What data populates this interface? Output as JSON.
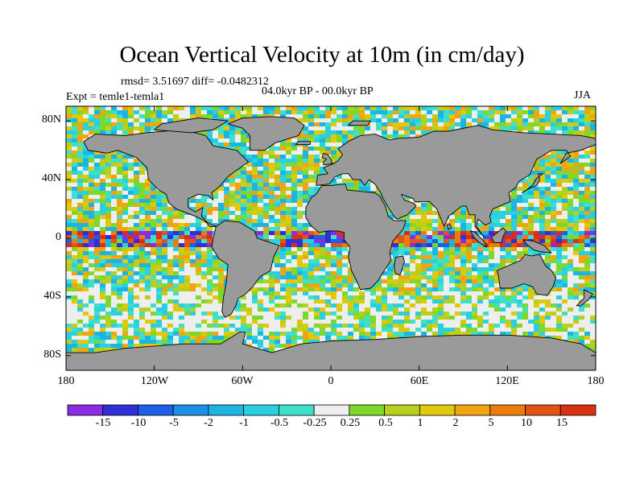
{
  "figure": {
    "title": "Ocean Vertical Velocity at 10m (in cm/day)",
    "stats": "rmsd= 3.51697  diff= -0.0482312",
    "period": "04.0kyr BP - 00.0kyr BP",
    "experiment": "Expt = temle1-temla1",
    "season": "JJA"
  },
  "axes": {
    "lat_ticks": [
      "80N",
      "40N",
      "0",
      "40S",
      "80S"
    ],
    "lon_ticks": [
      "180",
      "120W",
      "60W",
      "0",
      "60E",
      "120E",
      "180"
    ]
  },
  "colorbar": {
    "labels": [
      "-15",
      "-10",
      "-5",
      "-2",
      "-1",
      "-0.5",
      "-0.25",
      "0.25",
      "0.5",
      "1",
      "2",
      "5",
      "10",
      "15"
    ],
    "colors": [
      "#8b2be2",
      "#3030d8",
      "#1e5fe6",
      "#1d8fe6",
      "#1cb4e0",
      "#2ad0e0",
      "#3ee0c8",
      "#eeeeee",
      "#7ed82a",
      "#b8d01c",
      "#e0c80c",
      "#f0a410",
      "#ec7c0c",
      "#e05414",
      "#d83010"
    ]
  },
  "map": {
    "land_color": "#9a9a9a",
    "coast_color": "#000000"
  }
}
